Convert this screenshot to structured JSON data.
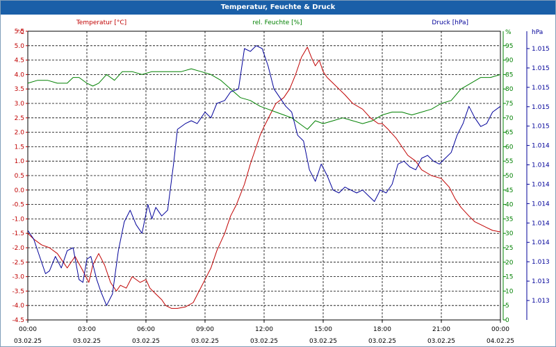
{
  "window": {
    "title": "Temperatur, Feuchte & Druck"
  },
  "colors": {
    "temperature": "#c00000",
    "humidity": "#008000",
    "pressure": "#000099",
    "grid": "#000000",
    "title_bg": "#1a5fa8"
  },
  "chart_data": {
    "type": "line",
    "title": "Temperatur, Feuchte & Druck",
    "legend": [
      "Temperatur [°C]",
      "rel. Feuchte [%]",
      "Druck [hPa]"
    ],
    "axes": {
      "left": {
        "unit": "°C",
        "range": [
          -4.5,
          5.5
        ],
        "ticks": [
          "5.5",
          "5.0",
          "4.5",
          "4.0",
          "3.5",
          "3.0",
          "2.5",
          "2.0",
          "1.5",
          "1.0",
          "0.5",
          "0.0",
          "-0.5",
          "-1.0",
          "-1.5",
          "-2.0",
          "-2.5",
          "-3.0",
          "-3.5",
          "-4.0",
          "-4.5"
        ]
      },
      "mid": {
        "unit": "%",
        "range": [
          0,
          100
        ],
        "ticks": [
          "95",
          "90",
          "85",
          "80",
          "75",
          "70",
          "65",
          "60",
          "55",
          "50",
          "45",
          "40",
          "35",
          "30",
          "25",
          "20",
          "15",
          "10",
          "5",
          "0"
        ]
      },
      "right": {
        "unit": "hPa",
        "ticks": [
          "1.015",
          "1.015",
          "1.015",
          "1.015",
          "1.015",
          "1.014",
          "1.014",
          "1.014",
          "1.014",
          "1.014",
          "1.014",
          "1.013",
          "1.013",
          "1.013"
        ]
      },
      "x": {
        "range_hours": [
          0,
          24
        ],
        "ticks": [
          {
            "time": "00:00",
            "date": "03.02.25"
          },
          {
            "time": "03:00",
            "date": "03.02.25"
          },
          {
            "time": "06:00",
            "date": "03.02.25"
          },
          {
            "time": "09:00",
            "date": "03.02.25"
          },
          {
            "time": "12:00",
            "date": "03.02.25"
          },
          {
            "time": "15:00",
            "date": "03.02.25"
          },
          {
            "time": "18:00",
            "date": "03.02.25"
          },
          {
            "time": "21:00",
            "date": "03.02.25"
          },
          {
            "time": "00:00",
            "date": "04.02.25"
          }
        ]
      }
    },
    "series": [
      {
        "name": "Temperatur [°C]",
        "axis": "left",
        "x": [
          0,
          0.3,
          0.7,
          1.1,
          1.5,
          2.0,
          2.4,
          2.8,
          3.1,
          3.3,
          3.6,
          3.9,
          4.2,
          4.5,
          4.7,
          5.0,
          5.3,
          5.7,
          6.0,
          6.2,
          6.5,
          6.8,
          7.0,
          7.3,
          7.6,
          8.0,
          8.4,
          8.7,
          9.0,
          9.3,
          9.6,
          10.0,
          10.3,
          10.6,
          11.0,
          11.3,
          11.6,
          11.8,
          12.0,
          12.3,
          12.6,
          13.0,
          13.3,
          13.6,
          13.9,
          14.2,
          14.4,
          14.6,
          14.8,
          15.0,
          15.2,
          15.5,
          15.8,
          16.1,
          16.5,
          17.0,
          17.4,
          17.8,
          18.0,
          18.3,
          18.7,
          19.0,
          19.3,
          19.7,
          20.0,
          20.5,
          21.0,
          21.4,
          21.7,
          22.0,
          22.4,
          22.7,
          23.0,
          23.3,
          23.6,
          24.0
        ],
        "values": [
          -1.5,
          -1.7,
          -1.9,
          -2.0,
          -2.2,
          -2.7,
          -2.3,
          -2.8,
          -3.2,
          -2.6,
          -2.2,
          -2.6,
          -3.2,
          -3.5,
          -3.3,
          -3.4,
          -3.0,
          -3.2,
          -3.1,
          -3.4,
          -3.6,
          -3.8,
          -4.0,
          -4.1,
          -4.1,
          -4.05,
          -3.9,
          -3.5,
          -3.1,
          -2.7,
          -2.1,
          -1.5,
          -0.9,
          -0.5,
          0.2,
          0.9,
          1.5,
          1.9,
          2.2,
          2.6,
          3.0,
          3.2,
          3.5,
          4.0,
          4.6,
          4.95,
          4.6,
          4.3,
          4.5,
          4.1,
          3.9,
          3.7,
          3.5,
          3.3,
          3.0,
          2.8,
          2.5,
          2.3,
          2.3,
          2.1,
          1.8,
          1.5,
          1.2,
          1.0,
          0.7,
          0.5,
          0.4,
          0.1,
          -0.3,
          -0.6,
          -0.9,
          -1.1,
          -1.2,
          -1.3,
          -1.4,
          -1.45
        ]
      },
      {
        "name": "rel. Feuchte [%]",
        "axis": "mid",
        "x": [
          0,
          0.5,
          1.0,
          1.5,
          2.0,
          2.3,
          2.6,
          3.0,
          3.3,
          3.6,
          4.0,
          4.4,
          4.8,
          5.3,
          5.8,
          6.3,
          6.8,
          7.3,
          7.8,
          8.3,
          8.8,
          9.3,
          9.8,
          10.3,
          10.8,
          11.3,
          11.8,
          12.2,
          12.6,
          13.0,
          13.4,
          13.8,
          14.2,
          14.6,
          15.0,
          15.5,
          16.0,
          16.5,
          17.0,
          17.5,
          18.0,
          18.5,
          19.0,
          19.5,
          20.0,
          20.5,
          21.0,
          21.5,
          22.0,
          22.5,
          23.0,
          23.5,
          24.0
        ],
        "values": [
          82,
          83,
          83,
          82,
          82,
          84,
          84,
          82,
          81,
          82,
          85,
          83,
          86,
          86,
          85,
          86,
          86,
          86,
          86,
          87,
          86,
          85,
          83,
          80,
          77,
          76,
          74,
          73,
          72,
          71,
          70,
          68,
          66,
          69,
          68,
          69,
          70,
          69,
          68,
          69,
          71,
          72,
          72,
          71,
          72,
          73,
          75,
          76,
          80,
          82,
          84,
          84,
          85
        ]
      },
      {
        "name": "Druck [hPa]",
        "axis": "mid",
        "x": [
          0,
          0.3,
          0.6,
          0.9,
          1.1,
          1.4,
          1.7,
          2.0,
          2.3,
          2.6,
          2.8,
          3.0,
          3.2,
          3.5,
          3.7,
          4.0,
          4.3,
          4.6,
          4.9,
          5.2,
          5.5,
          5.8,
          6.1,
          6.3,
          6.5,
          6.8,
          7.1,
          7.4,
          7.6,
          8.0,
          8.3,
          8.6,
          9.0,
          9.3,
          9.6,
          10.0,
          10.3,
          10.7,
          11.0,
          11.3,
          11.6,
          11.9,
          12.2,
          12.5,
          12.8,
          13.1,
          13.4,
          13.7,
          14.0,
          14.3,
          14.6,
          14.9,
          15.2,
          15.5,
          15.8,
          16.1,
          16.4,
          16.7,
          17.0,
          17.3,
          17.6,
          17.9,
          18.2,
          18.5,
          18.8,
          19.1,
          19.4,
          19.7,
          20.0,
          20.3,
          20.6,
          20.9,
          21.2,
          21.5,
          21.8,
          22.1,
          22.4,
          22.7,
          23.0,
          23.3,
          23.6,
          24.0
        ],
        "values": [
          31,
          28,
          22,
          16,
          17,
          22,
          18,
          24,
          25,
          14,
          13,
          21,
          22,
          14,
          10,
          5,
          9,
          24,
          34,
          38,
          33,
          30,
          40,
          35,
          39,
          36,
          38,
          54,
          66,
          68,
          69,
          68,
          72,
          70,
          75,
          76,
          79,
          80,
          94,
          93,
          95,
          94,
          88,
          80,
          77,
          74,
          72,
          64,
          62,
          52,
          48,
          54,
          50,
          45,
          44,
          46,
          45,
          44,
          45,
          43,
          41,
          45,
          44,
          47,
          54,
          55,
          53,
          52,
          56,
          57,
          55,
          54,
          56,
          58,
          64,
          68,
          74,
          70,
          67,
          68,
          72,
          74
        ]
      }
    ]
  }
}
